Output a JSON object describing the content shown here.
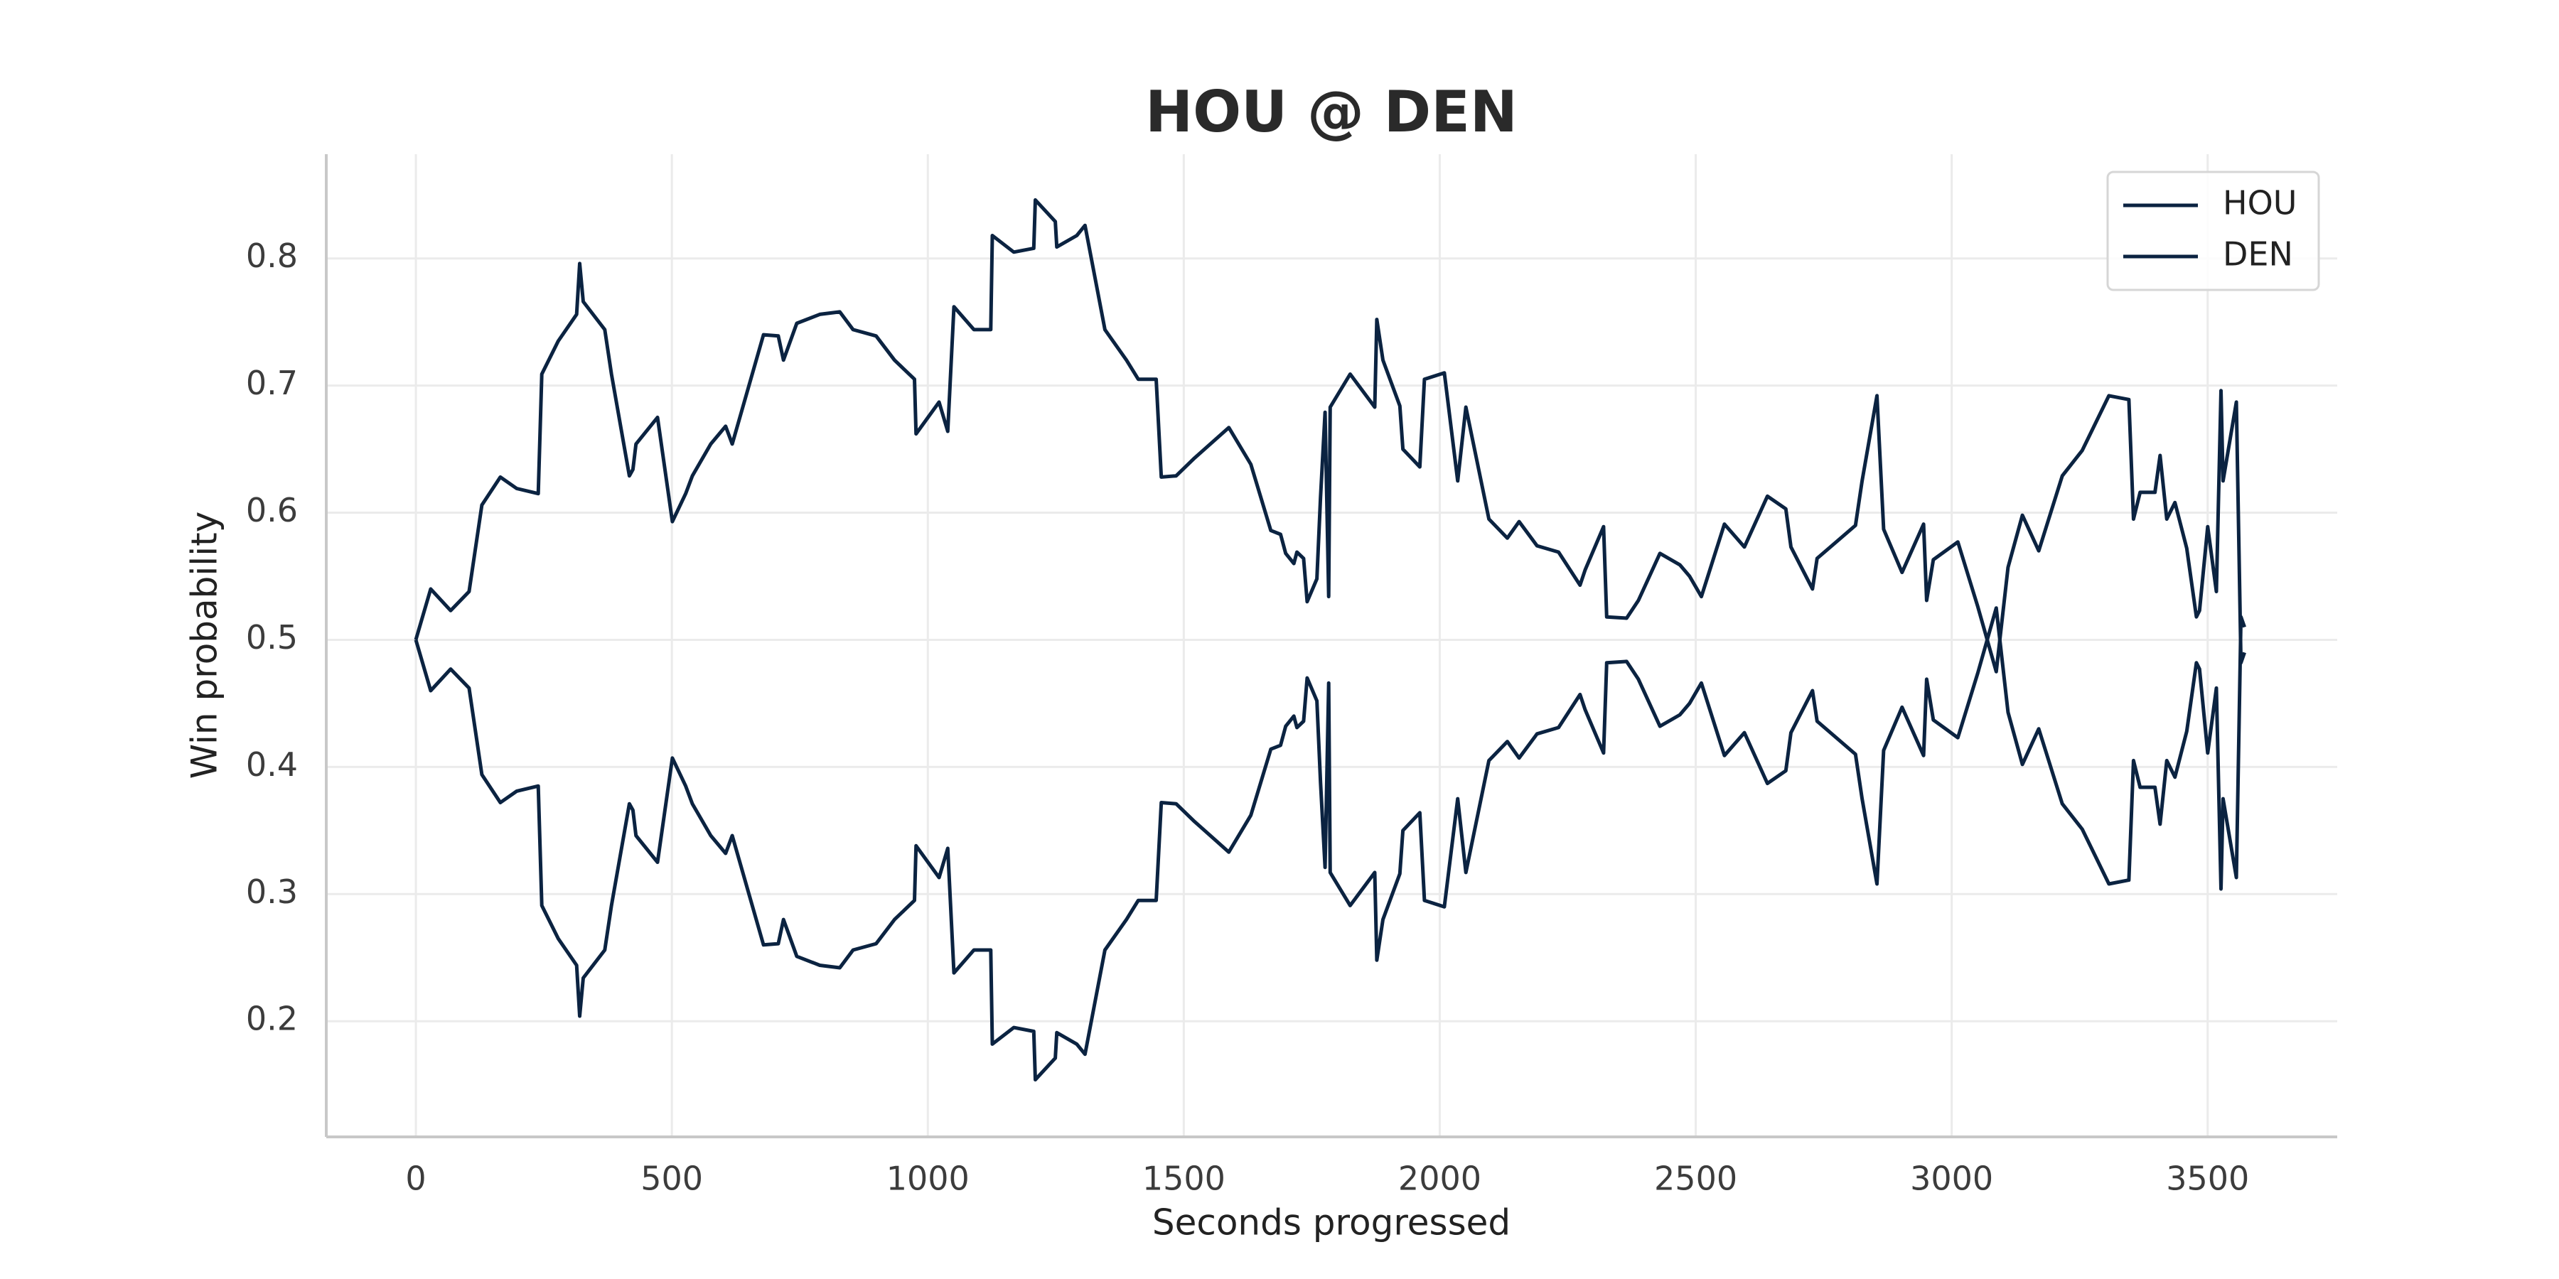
{
  "chart_data": {
    "type": "line",
    "title": "HOU @ DEN",
    "x_label": "Seconds progressed",
    "y_label": "Win probability",
    "x": [
      0,
      29,
      68,
      104,
      129,
      165,
      197,
      239,
      246,
      278,
      314,
      320,
      327,
      369,
      382,
      417,
      424,
      430,
      472,
      501,
      527,
      540,
      576,
      605,
      618,
      679,
      708,
      718,
      744,
      789,
      828,
      854,
      899,
      935,
      974,
      977,
      1022,
      1039,
      1051,
      1090,
      1123,
      1126,
      1168,
      1207,
      1210,
      1249,
      1252,
      1291,
      1307,
      1346,
      1388,
      1411,
      1446,
      1456,
      1485,
      1521,
      1563,
      1588,
      1631,
      1670,
      1689,
      1699,
      1715,
      1721,
      1734,
      1741,
      1760,
      1767,
      1776,
      1783,
      1786,
      1825,
      1873,
      1877,
      1889,
      1922,
      1928,
      1961,
      1970,
      2009,
      2035,
      2051,
      2096,
      2132,
      2155,
      2190,
      2232,
      2274,
      2284,
      2320,
      2326,
      2365,
      2388,
      2430,
      2469,
      2488,
      2511,
      2556,
      2595,
      2640,
      2676,
      2686,
      2728,
      2737,
      2812,
      2825,
      2854,
      2867,
      2903,
      2945,
      2951,
      2964,
      3012,
      3051,
      3087,
      3110,
      3138,
      3170,
      3216,
      3255,
      3307,
      3346,
      3355,
      3368,
      3397,
      3407,
      3420,
      3436,
      3459,
      3478,
      3484,
      3500,
      3517,
      3526,
      3530,
      3556,
      3565,
      3572
    ],
    "series": [
      {
        "name": "HOU",
        "color": "#0b2341",
        "values": [
          0.5,
          0.54,
          0.523,
          0.538,
          0.606,
          0.628,
          0.619,
          0.615,
          0.709,
          0.735,
          0.756,
          0.796,
          0.766,
          0.744,
          0.709,
          0.629,
          0.634,
          0.654,
          0.675,
          0.593,
          0.615,
          0.629,
          0.654,
          0.668,
          0.654,
          0.74,
          0.739,
          0.72,
          0.749,
          0.756,
          0.758,
          0.744,
          0.739,
          0.72,
          0.705,
          0.662,
          0.687,
          0.664,
          0.762,
          0.744,
          0.744,
          0.818,
          0.805,
          0.808,
          0.846,
          0.829,
          0.809,
          0.818,
          0.826,
          0.744,
          0.72,
          0.705,
          0.705,
          0.628,
          0.629,
          0.643,
          0.658,
          0.667,
          0.638,
          0.586,
          0.583,
          0.568,
          0.56,
          0.569,
          0.564,
          0.53,
          0.548,
          0.612,
          0.679,
          0.534,
          0.683,
          0.709,
          0.683,
          0.752,
          0.72,
          0.684,
          0.65,
          0.636,
          0.705,
          0.71,
          0.625,
          0.683,
          0.595,
          0.58,
          0.593,
          0.574,
          0.569,
          0.543,
          0.555,
          0.589,
          0.518,
          0.517,
          0.531,
          0.568,
          0.559,
          0.55,
          0.534,
          0.591,
          0.573,
          0.613,
          0.603,
          0.573,
          0.54,
          0.564,
          0.59,
          0.625,
          0.692,
          0.587,
          0.553,
          0.591,
          0.531,
          0.563,
          0.577,
          0.526,
          0.475,
          0.557,
          0.598,
          0.57,
          0.629,
          0.649,
          0.692,
          0.689,
          0.595,
          0.616,
          0.616,
          0.645,
          0.595,
          0.608,
          0.572,
          0.518,
          0.523,
          0.589,
          0.538,
          0.696,
          0.625,
          0.687,
          0.482,
          0.49
        ]
      },
      {
        "name": "DEN",
        "color": "#0b2341",
        "values": [
          0.5,
          0.46,
          0.477,
          0.462,
          0.394,
          0.372,
          0.381,
          0.385,
          0.291,
          0.265,
          0.244,
          0.204,
          0.234,
          0.256,
          0.291,
          0.371,
          0.366,
          0.346,
          0.325,
          0.407,
          0.385,
          0.371,
          0.346,
          0.332,
          0.346,
          0.26,
          0.261,
          0.28,
          0.251,
          0.244,
          0.242,
          0.256,
          0.261,
          0.28,
          0.295,
          0.338,
          0.313,
          0.336,
          0.238,
          0.256,
          0.256,
          0.182,
          0.195,
          0.192,
          0.154,
          0.171,
          0.191,
          0.182,
          0.174,
          0.256,
          0.28,
          0.295,
          0.295,
          0.372,
          0.371,
          0.357,
          0.342,
          0.333,
          0.362,
          0.414,
          0.417,
          0.432,
          0.44,
          0.431,
          0.436,
          0.47,
          0.452,
          0.388,
          0.321,
          0.466,
          0.317,
          0.291,
          0.317,
          0.248,
          0.28,
          0.316,
          0.35,
          0.364,
          0.295,
          0.29,
          0.375,
          0.317,
          0.405,
          0.42,
          0.407,
          0.426,
          0.431,
          0.457,
          0.445,
          0.411,
          0.482,
          0.483,
          0.469,
          0.432,
          0.441,
          0.45,
          0.466,
          0.409,
          0.427,
          0.387,
          0.397,
          0.427,
          0.46,
          0.436,
          0.41,
          0.375,
          0.308,
          0.413,
          0.447,
          0.409,
          0.469,
          0.437,
          0.423,
          0.474,
          0.525,
          0.443,
          0.402,
          0.43,
          0.371,
          0.351,
          0.308,
          0.311,
          0.405,
          0.384,
          0.384,
          0.355,
          0.405,
          0.392,
          0.428,
          0.482,
          0.477,
          0.411,
          0.462,
          0.304,
          0.375,
          0.313,
          0.518,
          0.51
        ]
      }
    ],
    "xlim": [
      -175,
      3753
    ],
    "ylim": [
      0.109,
      0.882
    ],
    "xticks": [
      0,
      500,
      1000,
      1500,
      2000,
      2500,
      3000,
      3500
    ],
    "yticks": [
      0.2,
      0.3,
      0.4,
      0.5,
      0.6,
      0.7,
      0.8
    ],
    "grid": true,
    "legend": "upper right"
  }
}
